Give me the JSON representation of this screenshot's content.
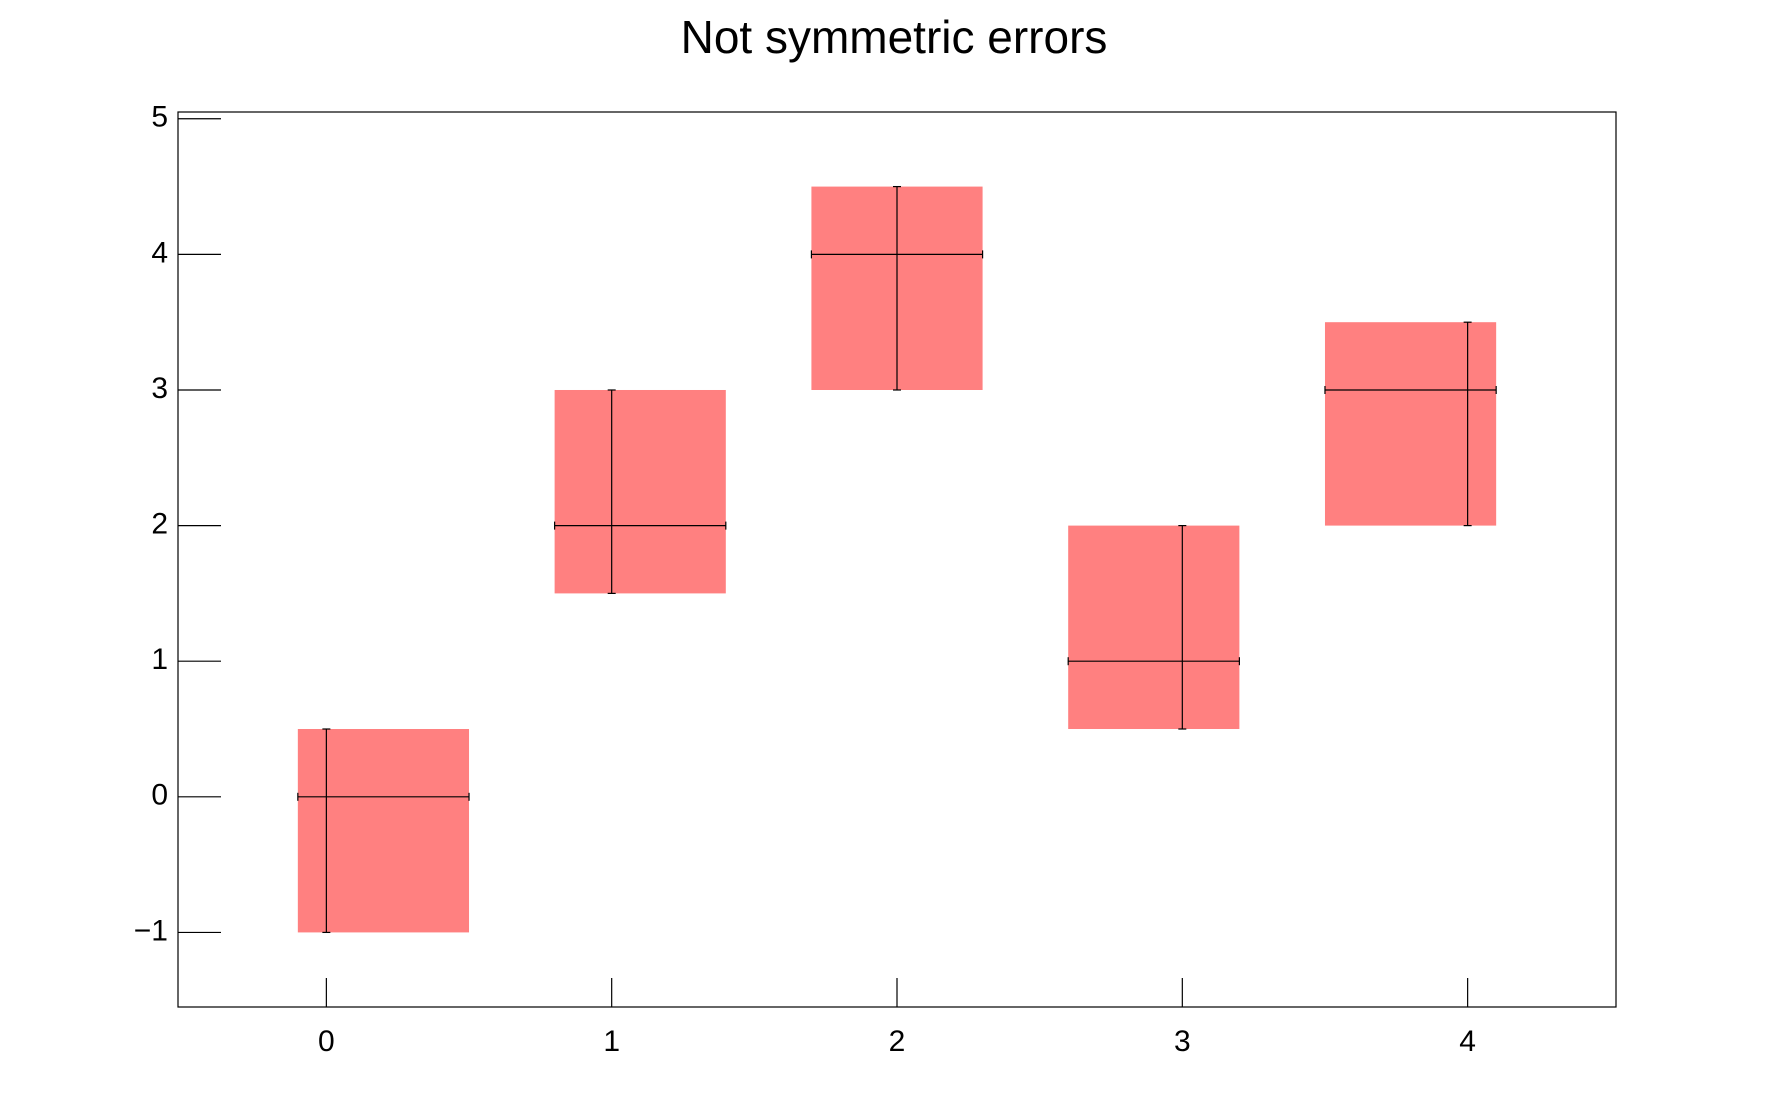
{
  "chart_data": {
    "type": "scatter",
    "title": "Not symmetric errors",
    "x": [
      0,
      1,
      2,
      3,
      4
    ],
    "values": [
      0,
      2,
      4,
      1,
      3
    ],
    "exl": [
      0.1,
      0.2,
      0.3,
      0.4,
      0.5
    ],
    "exh": [
      0.5,
      0.4,
      0.3,
      0.2,
      0.1
    ],
    "eyl": [
      1,
      0.5,
      1,
      0.5,
      1
    ],
    "eyh": [
      0.5,
      1,
      0.5,
      1,
      0.5
    ],
    "color": "#ff8080",
    "xlim": [
      -0.52,
      4.52
    ],
    "xticks": [
      0,
      1,
      2,
      3,
      4
    ],
    "ylim": [
      -1.55,
      5.05
    ],
    "yticks": [
      {
        "value": -1,
        "label": "−1"
      },
      0,
      1,
      2,
      3,
      4,
      5
    ]
  }
}
